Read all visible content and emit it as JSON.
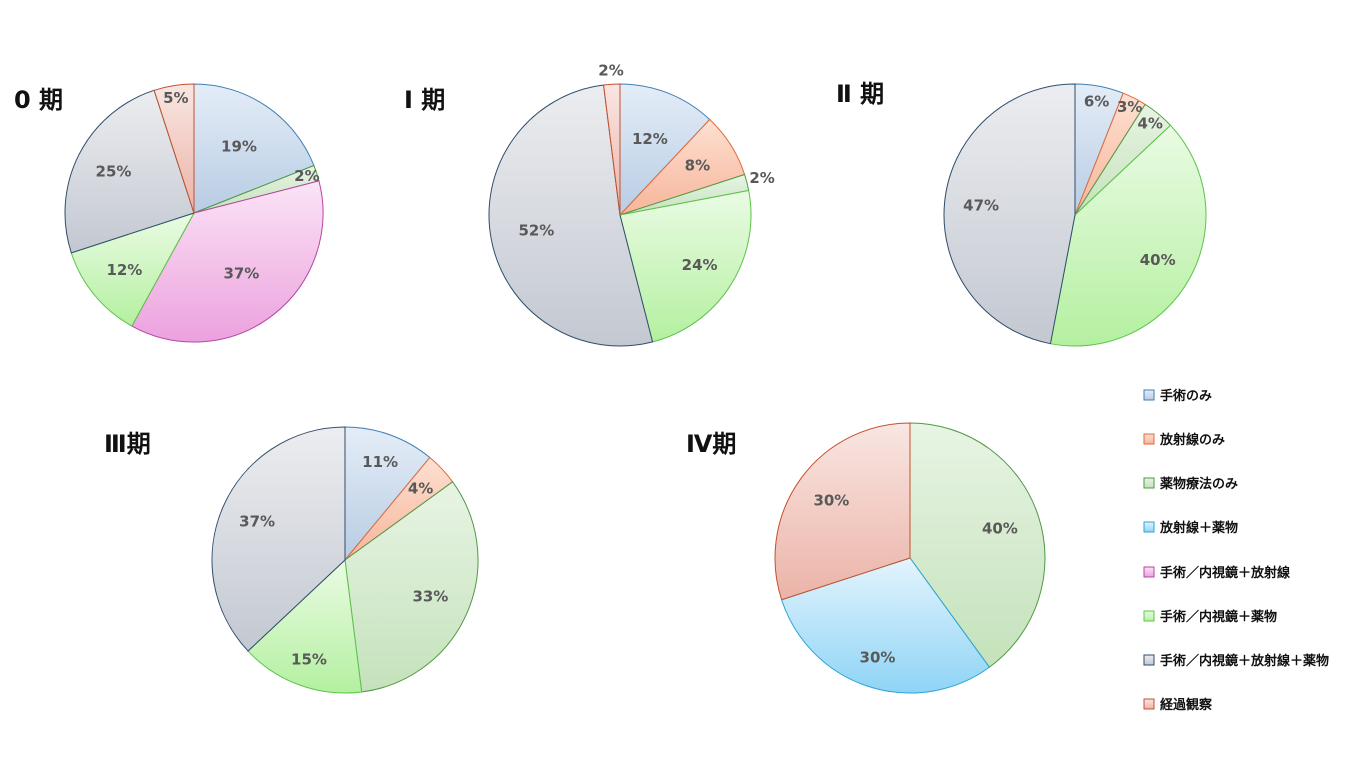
{
  "categories": [
    {
      "key": "surgery",
      "label": "手術のみ",
      "fill_top": "#e4edf7",
      "fill_bottom": "#b8cce4",
      "stroke": "#3f7fb5"
    },
    {
      "key": "radiation",
      "label": "放射線のみ",
      "fill_top": "#fde0d2",
      "fill_bottom": "#f7b59a",
      "stroke": "#e06a3c"
    },
    {
      "key": "drug",
      "label": "薬物療法のみ",
      "fill_top": "#e8f4e4",
      "fill_bottom": "#c4e2bb",
      "stroke": "#4f9a44"
    },
    {
      "key": "rad_drug",
      "label": "放射線＋薬物",
      "fill_top": "#e4f4fd",
      "fill_bottom": "#8fd4f6",
      "stroke": "#2ba3d8"
    },
    {
      "key": "surg_rad",
      "label": "手術／内視鏡＋放射線",
      "fill_top": "#fbe4f6",
      "fill_bottom": "#eca1de",
      "stroke": "#b446a6"
    },
    {
      "key": "surg_drug",
      "label": "手術／内視鏡＋薬物",
      "fill_top": "#eafbe4",
      "fill_bottom": "#b4f0a0",
      "stroke": "#5cc44a"
    },
    {
      "key": "surg_rad_drug",
      "label": "手術／内視鏡＋放射線＋薬物",
      "fill_top": "#ecedf0",
      "fill_bottom": "#c3c8d1",
      "stroke": "#2f4d6b"
    },
    {
      "key": "observation",
      "label": "経過観察",
      "fill_top": "#f9e6e2",
      "fill_bottom": "#ebb3a8",
      "stroke": "#c4502c"
    }
  ],
  "chart_data": [
    {
      "type": "pie",
      "title": "0 期",
      "slices": [
        {
          "category": "surgery",
          "value": 19,
          "label": "19%"
        },
        {
          "category": "drug",
          "value": 2,
          "label": "2%"
        },
        {
          "category": "surg_rad",
          "value": 37,
          "label": "37%"
        },
        {
          "category": "surg_drug",
          "value": 12,
          "label": "12%"
        },
        {
          "category": "surg_rad_drug",
          "value": 25,
          "label": "25%"
        },
        {
          "category": "observation",
          "value": 5,
          "label": "5%"
        }
      ]
    },
    {
      "type": "pie",
      "title": "Ⅰ 期",
      "slices": [
        {
          "category": "surgery",
          "value": 12,
          "label": "12%"
        },
        {
          "category": "radiation",
          "value": 8,
          "label": "8%"
        },
        {
          "category": "drug",
          "value": 2,
          "label": "2%"
        },
        {
          "category": "surg_drug",
          "value": 24,
          "label": "24%"
        },
        {
          "category": "surg_rad_drug",
          "value": 52,
          "label": "52%"
        },
        {
          "category": "observation",
          "value": 2,
          "label": "2%"
        }
      ]
    },
    {
      "type": "pie",
      "title": "Ⅱ 期",
      "slices": [
        {
          "category": "surgery",
          "value": 6,
          "label": "6%"
        },
        {
          "category": "radiation",
          "value": 3,
          "label": "3%"
        },
        {
          "category": "drug",
          "value": 4,
          "label": "4%"
        },
        {
          "category": "surg_drug",
          "value": 40,
          "label": "40%"
        },
        {
          "category": "surg_rad_drug",
          "value": 47,
          "label": "47%"
        }
      ]
    },
    {
      "type": "pie",
      "title": "Ⅲ期",
      "slices": [
        {
          "category": "surgery",
          "value": 11,
          "label": "11%"
        },
        {
          "category": "radiation",
          "value": 4,
          "label": "4%"
        },
        {
          "category": "drug",
          "value": 33,
          "label": "33%"
        },
        {
          "category": "surg_drug",
          "value": 15,
          "label": "15%"
        },
        {
          "category": "surg_rad_drug",
          "value": 37,
          "label": "37%"
        }
      ]
    },
    {
      "type": "pie",
      "title": "Ⅳ期",
      "slices": [
        {
          "category": "drug",
          "value": 40,
          "label": "40%"
        },
        {
          "category": "rad_drug",
          "value": 30,
          "label": "30%"
        },
        {
          "category": "observation",
          "value": 30,
          "label": "30%"
        }
      ]
    }
  ],
  "legend_position": "right"
}
